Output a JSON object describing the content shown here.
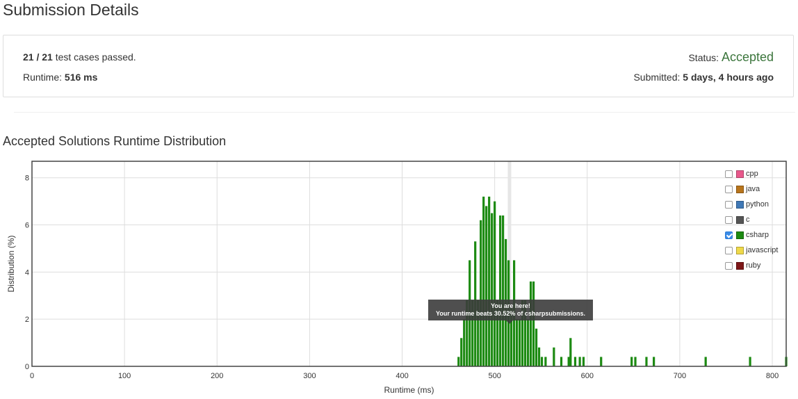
{
  "page": {
    "title": "Submission Details"
  },
  "summary": {
    "passed_count": "21 / 21",
    "passed_text": " test cases passed.",
    "runtime_label": "Runtime: ",
    "runtime_value": "516 ms",
    "status_label": "Status: ",
    "status_value": "Accepted",
    "submitted_label": "Submitted: ",
    "submitted_value": "5 days, 4 hours ago"
  },
  "section": {
    "title": "Accepted Solutions Runtime Distribution"
  },
  "tooltip": {
    "line1": "You are here!",
    "line2": "Your runtime beats 30.52% of csharpsubmissions."
  },
  "legend": [
    {
      "label": "cpp",
      "color": "#e8588b",
      "checked": false
    },
    {
      "label": "java",
      "color": "#b8751c",
      "checked": false
    },
    {
      "label": "python",
      "color": "#3f78b6",
      "checked": false
    },
    {
      "label": "c",
      "color": "#555555",
      "checked": false
    },
    {
      "label": "csharp",
      "color": "#1c8a12",
      "checked": true
    },
    {
      "label": "javascript",
      "color": "#efd94a",
      "checked": false
    },
    {
      "label": "ruby",
      "color": "#7e1718",
      "checked": false
    }
  ],
  "chart_data": {
    "type": "bar",
    "xlabel": "Runtime (ms)",
    "ylabel": "Distribution (%)",
    "xlim": [
      0,
      815
    ],
    "ylim": [
      0,
      8.7
    ],
    "xticks": [
      0,
      100,
      200,
      300,
      400,
      500,
      600,
      700,
      800
    ],
    "yticks": [
      0,
      2,
      4,
      6,
      8
    ],
    "grid": true,
    "series_color": "#1c8a12",
    "highlight_x": 516,
    "points": [
      {
        "x": 461,
        "y": 0.4
      },
      {
        "x": 464,
        "y": 1.2
      },
      {
        "x": 467,
        "y": 2.0
      },
      {
        "x": 470,
        "y": 2.8
      },
      {
        "x": 473,
        "y": 4.5
      },
      {
        "x": 476,
        "y": 2.8
      },
      {
        "x": 479,
        "y": 5.3
      },
      {
        "x": 482,
        "y": 2.8
      },
      {
        "x": 485,
        "y": 6.2
      },
      {
        "x": 488,
        "y": 7.2
      },
      {
        "x": 491,
        "y": 6.8
      },
      {
        "x": 494,
        "y": 7.2
      },
      {
        "x": 497,
        "y": 6.5
      },
      {
        "x": 500,
        "y": 7.0
      },
      {
        "x": 503,
        "y": 2.8
      },
      {
        "x": 506,
        "y": 6.4
      },
      {
        "x": 509,
        "y": 6.4
      },
      {
        "x": 512,
        "y": 5.4
      },
      {
        "x": 515,
        "y": 4.5
      },
      {
        "x": 518,
        "y": 2.5
      },
      {
        "x": 521,
        "y": 4.5
      },
      {
        "x": 524,
        "y": 2.0
      },
      {
        "x": 527,
        "y": 2.0
      },
      {
        "x": 530,
        "y": 2.8
      },
      {
        "x": 533,
        "y": 2.8
      },
      {
        "x": 536,
        "y": 2.0
      },
      {
        "x": 539,
        "y": 3.6
      },
      {
        "x": 542,
        "y": 3.6
      },
      {
        "x": 545,
        "y": 1.6
      },
      {
        "x": 548,
        "y": 0.8
      },
      {
        "x": 551,
        "y": 0.4
      },
      {
        "x": 555,
        "y": 0.4
      },
      {
        "x": 564,
        "y": 0.8
      },
      {
        "x": 572,
        "y": 0.4
      },
      {
        "x": 580,
        "y": 0.4
      },
      {
        "x": 582,
        "y": 1.2
      },
      {
        "x": 587,
        "y": 0.4
      },
      {
        "x": 592,
        "y": 0.4
      },
      {
        "x": 596,
        "y": 0.4
      },
      {
        "x": 615,
        "y": 0.4
      },
      {
        "x": 648,
        "y": 0.4
      },
      {
        "x": 652,
        "y": 0.4
      },
      {
        "x": 664,
        "y": 0.4
      },
      {
        "x": 672,
        "y": 0.4
      },
      {
        "x": 728,
        "y": 0.4
      },
      {
        "x": 776,
        "y": 0.4
      },
      {
        "x": 815,
        "y": 0.4
      }
    ]
  }
}
